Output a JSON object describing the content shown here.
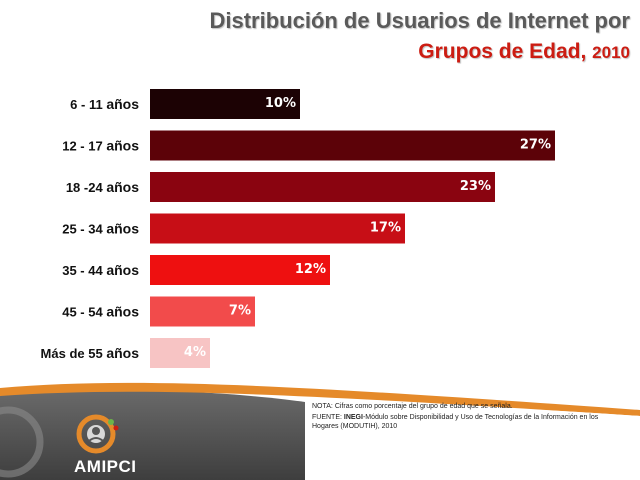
{
  "header": {
    "title_line1": "Distribución de Usuarios de Internet por",
    "title_line2": "Grupos de Edad",
    "title_sep": ",",
    "title_year": "2010"
  },
  "chart_data": {
    "type": "bar",
    "orientation": "horizontal",
    "categories": [
      {
        "range": "6 - 11",
        "unit": "años"
      },
      {
        "range": "12 - 17",
        "unit": "años"
      },
      {
        "range": "18 -24",
        "unit": "años"
      },
      {
        "range": "25 - 34",
        "unit": "años"
      },
      {
        "range": "35 - 44",
        "unit": "años"
      },
      {
        "range": "45 - 54",
        "unit": "años"
      },
      {
        "range": "Más de 55",
        "unit": "años"
      }
    ],
    "values": [
      10,
      27,
      23,
      17,
      12,
      7,
      4
    ],
    "value_labels": [
      "10%",
      "27%",
      "23%",
      "17%",
      "12%",
      "7%",
      "4%"
    ],
    "bar_colors": [
      "#1c0204",
      "#5c0208",
      "#8a0410",
      "#c70e16",
      "#ee1010",
      "#f24b4b",
      "#f7c4c4"
    ],
    "label_colors": [
      "#ffffff",
      "#ffffff",
      "#ffffff",
      "#ffffff",
      "#ffffff",
      "#ffffff",
      "#ffffff"
    ],
    "unit": "%",
    "grid": false,
    "legend": "none"
  },
  "footer": {
    "nota": "NOTA: Cifras como porcentaje del grupo de edad que se señala.",
    "fuente_prefix": "FUENTE: ",
    "fuente_org": "INEGI",
    "fuente_rest": "-Módulo sobre Disponibilidad y Uso de Tecnologías de la Información en los Hogares (MODUTIH), 2010",
    "logo_text": "AMIPCI"
  },
  "colors": {
    "title_gray": "#5a5a5a",
    "title_red": "#cc1c12",
    "band_dark": "#555555",
    "band_orange": "#e58a2a"
  }
}
